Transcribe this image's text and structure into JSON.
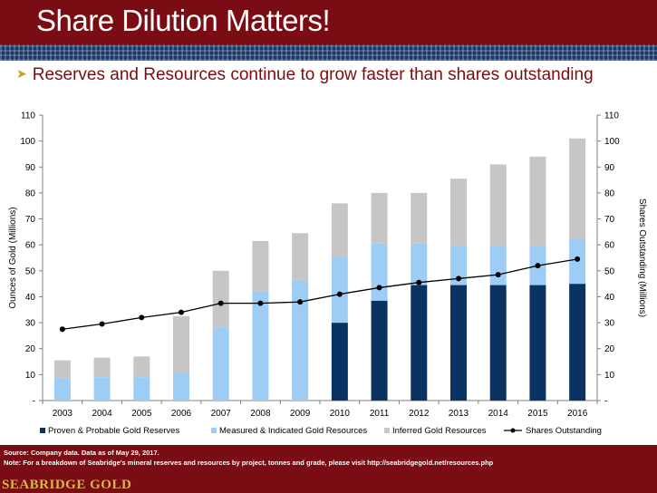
{
  "header": {
    "title": "Share Dilution Matters!",
    "subtitle": "Reserves and Resources continue to grow faster than shares outstanding"
  },
  "chart_data": {
    "type": "bar",
    "stacked": true,
    "categories": [
      "2003",
      "2004",
      "2005",
      "2006",
      "2007",
      "2008",
      "2009",
      "2010",
      "2011",
      "2012",
      "2013",
      "2014",
      "2015",
      "2016"
    ],
    "series": [
      {
        "name": "Proven & Probable Gold Reserves",
        "color": "#0a3263",
        "values": [
          0,
          0,
          0,
          0,
          0,
          0,
          0,
          30,
          38.5,
          44.5,
          44.5,
          44.5,
          44.5,
          45
        ]
      },
      {
        "name": "Measured & Indicated Gold Resources",
        "color": "#9dcdf5",
        "values": [
          8.5,
          9,
          9,
          10.5,
          28,
          42,
          46.5,
          25.5,
          22,
          16,
          15,
          15,
          15,
          17.5
        ]
      },
      {
        "name": "Inferred Gold Resources",
        "color": "#c6c6c6",
        "values": [
          7,
          7.5,
          8,
          22,
          22,
          19.5,
          18,
          20.5,
          19.5,
          19.5,
          26,
          31.5,
          34.5,
          38.5
        ]
      }
    ],
    "line_series": {
      "name": "Shares Outstanding",
      "color": "#000000",
      "axis": "right",
      "values": [
        27.5,
        29.5,
        32,
        34,
        37.5,
        37.5,
        38,
        41,
        43.5,
        45.5,
        47,
        48.5,
        52,
        54.5
      ]
    },
    "ylabel_left": "Ounces of Gold (Millions)",
    "ylabel_right": "Shares Outstanding (Millions)",
    "ylim": [
      0,
      110
    ],
    "y2lim": [
      0,
      110
    ],
    "yticks": [
      "-",
      "10",
      "20",
      "30",
      "40",
      "50",
      "60",
      "70",
      "80",
      "90",
      "100",
      "110"
    ],
    "legend_position": "bottom",
    "grid": false
  },
  "footer": {
    "source": "Source: Company data.  Data as of May 29, 2017.",
    "note": "Note: For a breakdown of Seabridge's mineral reserves and resources by project, tonnes and grade, please visit http://seabridgegold.net/resources.php",
    "brand": "SEABRIDGE GOLD"
  }
}
